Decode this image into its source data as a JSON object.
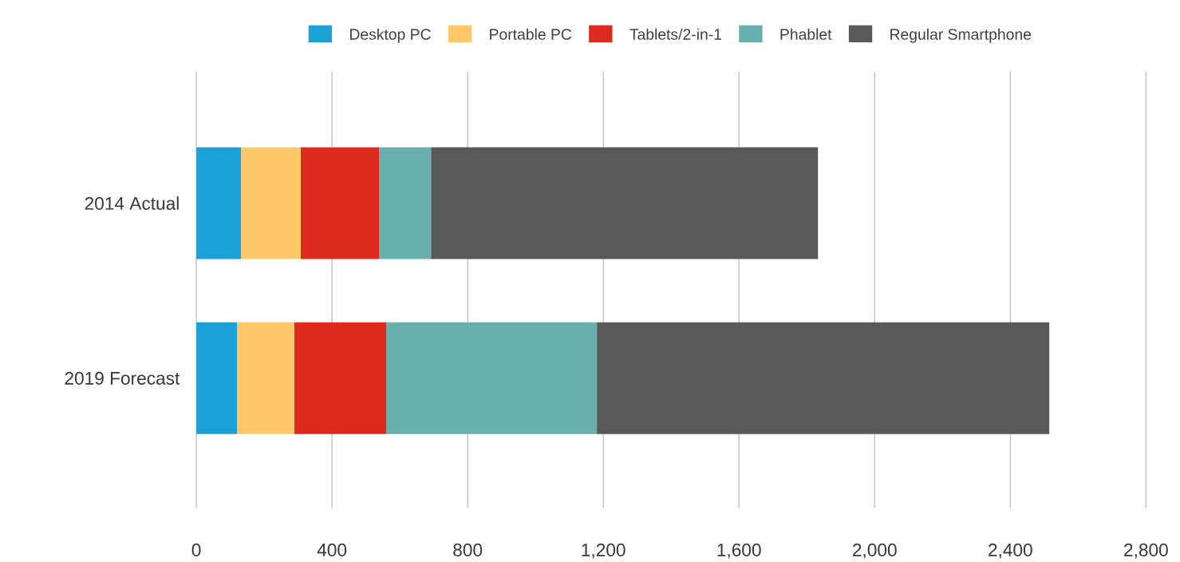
{
  "chart_data": {
    "type": "bar",
    "orientation": "horizontal",
    "stacked": true,
    "categories": [
      "2014 Actual",
      "2019 Forecast"
    ],
    "series": [
      {
        "name": "Desktop PC",
        "color": "#1ba1d5",
        "values": [
          132,
          120
        ]
      },
      {
        "name": "Portable PC",
        "color": "#fec86a",
        "values": [
          176,
          169
        ]
      },
      {
        "name": "Tablets/2-in-1",
        "color": "#dc2a1f",
        "values": [
          231,
          271
        ]
      },
      {
        "name": "Phablet",
        "color": "#69afad",
        "values": [
          153,
          621
        ]
      },
      {
        "name": "Regular Smartphone",
        "color": "#595959",
        "values": [
          1141,
          1334
        ]
      }
    ],
    "xlim": [
      0,
      2800
    ],
    "xticks": [
      0,
      400,
      800,
      {
        "value": 1200,
        "label": "1,200"
      },
      {
        "value": 1600,
        "label": "1,600"
      },
      {
        "value": 2000,
        "label": "2,000"
      },
      {
        "value": 2400,
        "label": "2,400"
      },
      {
        "value": 2800,
        "label": "2,800"
      }
    ],
    "grid": "x",
    "legend": "top"
  }
}
